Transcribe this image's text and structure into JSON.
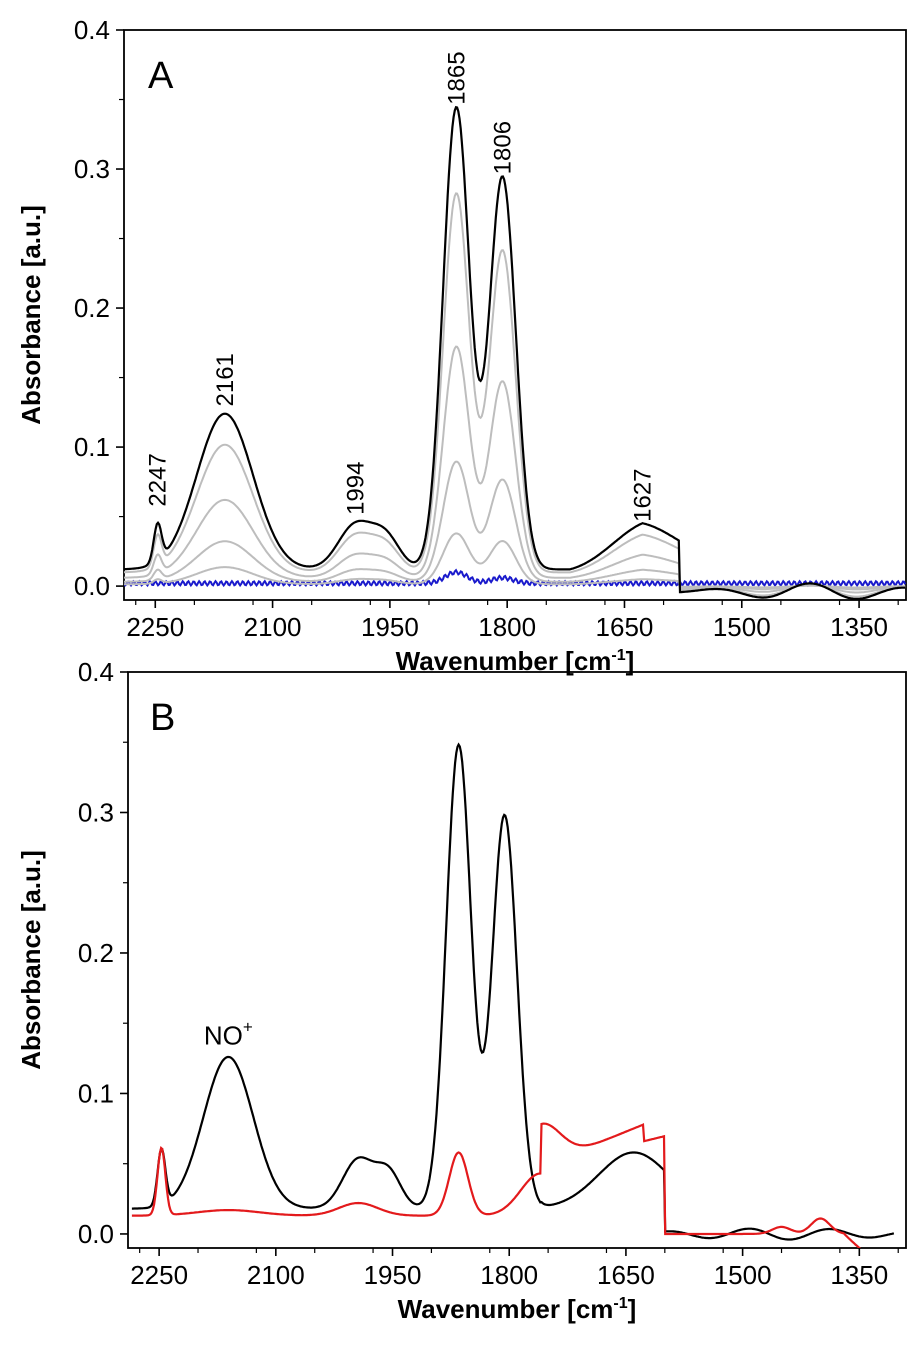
{
  "chart_data": [
    {
      "type": "line",
      "panel_label": "A",
      "xlabel": "Wavenumber [cm",
      "xlabel_sup": "-1",
      "xlabel_tail": "]",
      "ylabel": "Absorbance [a.u.]",
      "xlim": [
        2290,
        1290
      ],
      "ylim": [
        -0.01,
        0.4
      ],
      "x_reversed": true,
      "xticks": [
        "2250",
        "2100",
        "1950",
        "1800",
        "1650",
        "1500",
        "1350"
      ],
      "yticks": [
        "0.0",
        "0.1",
        "0.2",
        "0.3",
        "0.4"
      ],
      "peak_labels": [
        {
          "x": 2247,
          "y": 0.05,
          "text": "2247"
        },
        {
          "x": 2161,
          "y": 0.122,
          "text": "2161"
        },
        {
          "x": 1994,
          "y": 0.044,
          "text": "1994"
        },
        {
          "x": 1865,
          "y": 0.339,
          "text": "1865"
        },
        {
          "x": 1806,
          "y": 0.289,
          "text": "1806"
        },
        {
          "x": 1627,
          "y": 0.039,
          "text": "1627"
        }
      ],
      "series_colors": {
        "final": "#000000",
        "intermediate": "#bdbdbd",
        "initial": "#1a1acc"
      },
      "peaks": {
        "p2247": 2247,
        "p2161": 2161,
        "p1994": 1994,
        "p1960": 1960,
        "p1865": 1865,
        "p1806": 1806,
        "p1627": 1627
      },
      "series": [
        {
          "role": "final",
          "scale": 1.0
        },
        {
          "role": "intermediate",
          "scale": 0.82
        },
        {
          "role": "intermediate",
          "scale": 0.5
        },
        {
          "role": "intermediate",
          "scale": 0.26
        },
        {
          "role": "intermediate",
          "scale": 0.11
        },
        {
          "role": "initial",
          "scale": 0.0
        }
      ]
    },
    {
      "type": "line",
      "panel_label": "B",
      "xlabel": "Wavenumber [cm",
      "xlabel_sup": "-1",
      "xlabel_tail": "]",
      "ylabel": "Absorbance [a.u.]",
      "xlim": [
        2290,
        1290
      ],
      "ylim": [
        -0.01,
        0.4
      ],
      "x_reversed": true,
      "xticks": [
        "2250",
        "2100",
        "1950",
        "1800",
        "1650",
        "1500",
        "1350"
      ],
      "yticks": [
        "0.0",
        "0.1",
        "0.2",
        "0.3",
        "0.4"
      ],
      "annotation": {
        "text": "NO",
        "sup": "+",
        "x": 2161,
        "y": 0.135
      },
      "series": [
        {
          "color": "#000000",
          "peak_values": {
            "2247": 0.062,
            "2161": 0.126,
            "1994": 0.048,
            "1865": 0.343,
            "1806": 0.293,
            "1627": 0.043
          }
        },
        {
          "color": "#e31a1c",
          "peak_values": {
            "2247": 0.062,
            "2161": 0.016,
            "1994": 0.012,
            "1865": 0.06,
            "1760": 0.045,
            "1627": 0.079,
            "1450": 0.005,
            "1400": 0.011
          }
        }
      ]
    }
  ]
}
